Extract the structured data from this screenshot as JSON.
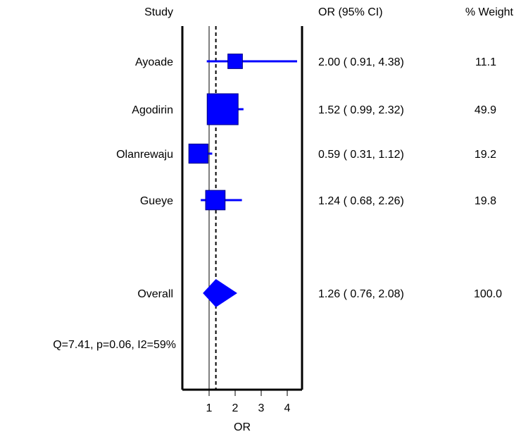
{
  "chart_data": {
    "type": "forest",
    "headers": {
      "study": "Study",
      "or_ci": "OR (95% CI)",
      "weight": "% Weight"
    },
    "studies": [
      {
        "name": "Ayoade",
        "or": 2.0,
        "lo": 0.91,
        "hi": 4.38,
        "ci_text": "2.00  ( 0.91,  4.38)",
        "weight_text": "11.1"
      },
      {
        "name": "Agodirin",
        "or": 1.52,
        "lo": 0.99,
        "hi": 2.32,
        "ci_text": "1.52  ( 0.99,  2.32)",
        "weight_text": "49.9"
      },
      {
        "name": "Olanrewaju",
        "or": 0.59,
        "lo": 0.31,
        "hi": 1.12,
        "ci_text": "0.59  ( 0.31,  1.12)",
        "weight_text": "19.2"
      },
      {
        "name": "Gueye",
        "or": 1.24,
        "lo": 0.68,
        "hi": 2.26,
        "ci_text": "1.24  ( 0.68,  2.26)",
        "weight_text": "19.8"
      }
    ],
    "overall": {
      "name": "Overall",
      "or": 1.26,
      "lo": 0.76,
      "hi": 2.08,
      "ci_text": "1.26  ( 0.76,  2.08)",
      "weight_text": "100.0"
    },
    "heterogeneity": "Q=7.41, p=0.06, I2=59%",
    "x_ticks": [
      1,
      2,
      3,
      4
    ],
    "xlabel": "OR",
    "xlim": [
      0,
      4.38
    ],
    "reference_line": 1,
    "pooled_line": 1.26,
    "colors": {
      "marker": "#0000ff",
      "line": "#000000"
    }
  }
}
